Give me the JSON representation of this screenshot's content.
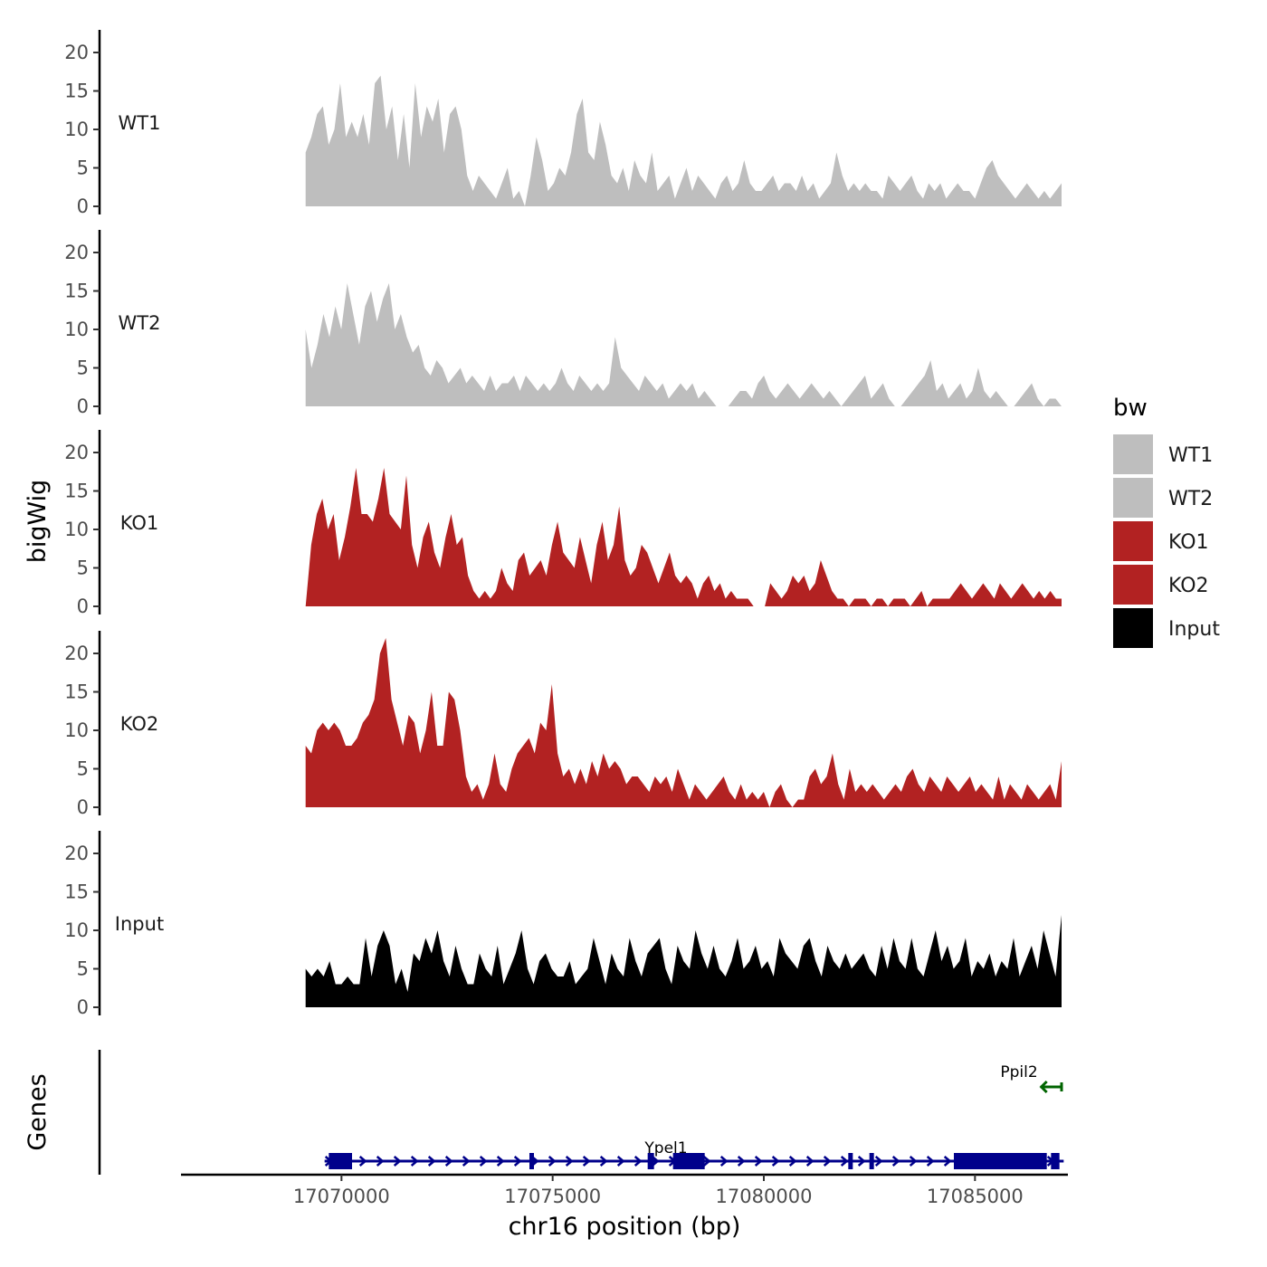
{
  "chart_data": {
    "type": "area",
    "ylabel": "bigWig",
    "xlabel": "chr16 position (bp)",
    "genes_label": "Genes",
    "ylim": [
      0,
      22
    ],
    "yticks": [
      0,
      5,
      10,
      15,
      20
    ],
    "xlim": [
      17066200,
      17087200
    ],
    "xticks": [
      17070000,
      17075000,
      17080000,
      17085000
    ],
    "xtick_labels": [
      "17070000",
      "17075000",
      "17080000",
      "17085000"
    ],
    "data_range": [
      17069150,
      17087050
    ],
    "legend": {
      "title": "bw",
      "entries": [
        {
          "label": "WT1",
          "color": "#bebebe"
        },
        {
          "label": "WT2",
          "color": "#bebebe"
        },
        {
          "label": "KO1",
          "color": "#b22222"
        },
        {
          "label": "KO2",
          "color": "#b22222"
        },
        {
          "label": "Input",
          "color": "#000000"
        }
      ]
    },
    "tracks": [
      {
        "name": "WT1",
        "color": "#bebebe",
        "values": [
          7,
          9,
          12,
          13,
          8,
          10,
          16,
          9,
          11,
          9,
          12,
          8,
          16,
          17,
          10,
          13,
          6,
          12,
          5,
          16,
          9,
          13,
          11,
          14,
          7,
          12,
          13,
          10,
          4,
          2,
          4,
          3,
          2,
          1,
          3,
          5,
          1,
          2,
          0,
          4,
          9,
          6,
          2,
          3,
          5,
          4,
          7,
          12,
          14,
          7,
          6,
          11,
          8,
          4,
          3,
          5,
          2,
          6,
          4,
          3,
          7,
          2,
          3,
          4,
          1,
          3,
          5,
          2,
          4,
          3,
          2,
          1,
          3,
          4,
          2,
          3,
          6,
          3,
          2,
          2,
          3,
          4,
          2,
          3,
          3,
          2,
          4,
          2,
          3,
          1,
          2,
          3,
          7,
          4,
          2,
          3,
          2,
          3,
          2,
          2,
          1,
          4,
          3,
          2,
          3,
          4,
          2,
          1,
          3,
          2,
          3,
          1,
          2,
          3,
          2,
          2,
          1,
          3,
          5,
          6,
          4,
          3,
          2,
          1,
          2,
          3,
          2,
          1,
          2,
          1,
          2,
          3
        ]
      },
      {
        "name": "WT2",
        "color": "#bebebe",
        "values": [
          10,
          5,
          8,
          12,
          9,
          13,
          10,
          16,
          12,
          8,
          13,
          15,
          11,
          14,
          16,
          10,
          12,
          9,
          7,
          8,
          5,
          4,
          6,
          5,
          3,
          4,
          5,
          3,
          4,
          3,
          2,
          4,
          2,
          3,
          3,
          4,
          2,
          4,
          3,
          2,
          3,
          2,
          3,
          5,
          3,
          2,
          4,
          3,
          2,
          3,
          2,
          3,
          9,
          5,
          4,
          3,
          2,
          4,
          3,
          2,
          3,
          1,
          2,
          3,
          2,
          3,
          1,
          2,
          1,
          0,
          0,
          0,
          1,
          2,
          2,
          1,
          3,
          4,
          2,
          1,
          2,
          3,
          2,
          1,
          2,
          3,
          2,
          1,
          2,
          1,
          0,
          1,
          2,
          3,
          4,
          1,
          2,
          3,
          1,
          0,
          0,
          1,
          2,
          3,
          4,
          6,
          2,
          3,
          1,
          2,
          3,
          1,
          2,
          5,
          2,
          1,
          2,
          1,
          0,
          0,
          1,
          2,
          3,
          1,
          0,
          1,
          1,
          0
        ]
      },
      {
        "name": "KO1",
        "color": "#b22222",
        "values": [
          0,
          8,
          12,
          14,
          10,
          12,
          6,
          9,
          13,
          18,
          12,
          12,
          11,
          14,
          18,
          12,
          11,
          10,
          17,
          8,
          5,
          9,
          11,
          7,
          5,
          9,
          12,
          8,
          9,
          4,
          2,
          1,
          2,
          1,
          2,
          5,
          3,
          2,
          6,
          7,
          4,
          5,
          6,
          4,
          8,
          11,
          7,
          6,
          5,
          9,
          6,
          3,
          8,
          11,
          6,
          8,
          13,
          6,
          4,
          5,
          8,
          7,
          5,
          3,
          5,
          7,
          4,
          3,
          4,
          3,
          1,
          3,
          4,
          2,
          3,
          1,
          2,
          1,
          1,
          1,
          0,
          0,
          0,
          3,
          2,
          1,
          2,
          4,
          3,
          4,
          2,
          3,
          6,
          4,
          2,
          1,
          1,
          0,
          1,
          1,
          1,
          0,
          1,
          1,
          0,
          1,
          1,
          1,
          0,
          1,
          2,
          0,
          1,
          1,
          1,
          1,
          2,
          3,
          2,
          1,
          2,
          3,
          2,
          1,
          3,
          2,
          1,
          2,
          3,
          2,
          1,
          2,
          1,
          2,
          1,
          1
        ]
      },
      {
        "name": "KO2",
        "color": "#b22222",
        "values": [
          8,
          7,
          10,
          11,
          10,
          11,
          10,
          8,
          8,
          9,
          11,
          12,
          14,
          20,
          22,
          14,
          11,
          8,
          12,
          11,
          7,
          10,
          15,
          8,
          8,
          15,
          14,
          10,
          4,
          2,
          3,
          1,
          3,
          7,
          3,
          2,
          5,
          7,
          8,
          9,
          7,
          11,
          10,
          16,
          7,
          4,
          5,
          3,
          5,
          3,
          6,
          4,
          7,
          5,
          6,
          5,
          3,
          4,
          4,
          3,
          2,
          4,
          3,
          4,
          2,
          5,
          3,
          1,
          3,
          2,
          1,
          2,
          3,
          4,
          2,
          1,
          3,
          1,
          2,
          1,
          2,
          0,
          2,
          3,
          1,
          0,
          1,
          1,
          4,
          5,
          3,
          4,
          7,
          3,
          1,
          5,
          2,
          3,
          2,
          3,
          2,
          1,
          2,
          3,
          2,
          4,
          5,
          3,
          2,
          4,
          3,
          2,
          4,
          3,
          2,
          3,
          4,
          2,
          3,
          2,
          1,
          4,
          1,
          3,
          2,
          1,
          3,
          2,
          1,
          2,
          3,
          1,
          6
        ]
      },
      {
        "name": "Input",
        "color": "#000000",
        "values": [
          5,
          4,
          5,
          4,
          6,
          3,
          3,
          4,
          3,
          3,
          9,
          4,
          8,
          10,
          8,
          3,
          5,
          2,
          7,
          6,
          9,
          7,
          10,
          6,
          4,
          8,
          5,
          3,
          3,
          7,
          5,
          4,
          8,
          3,
          5,
          7,
          10,
          5,
          3,
          6,
          7,
          5,
          4,
          4,
          6,
          3,
          4,
          5,
          9,
          6,
          3,
          7,
          5,
          4,
          9,
          6,
          4,
          7,
          8,
          9,
          5,
          3,
          8,
          6,
          5,
          10,
          7,
          5,
          8,
          5,
          4,
          6,
          9,
          5,
          6,
          8,
          5,
          6,
          4,
          9,
          7,
          6,
          5,
          8,
          9,
          6,
          4,
          8,
          6,
          5,
          7,
          5,
          6,
          7,
          5,
          4,
          8,
          5,
          9,
          6,
          5,
          9,
          5,
          4,
          7,
          10,
          6,
          8,
          5,
          6,
          9,
          4,
          6,
          5,
          7,
          4,
          6,
          5,
          9,
          4,
          6,
          8,
          5,
          10,
          7,
          4,
          12
        ]
      }
    ],
    "genes": [
      {
        "name": "Ypel1",
        "strand": "+",
        "color": "#00008b",
        "start": 17069600,
        "end": 17087100,
        "exons": [
          [
            17069700,
            17070250
          ],
          [
            17074450,
            17074550
          ],
          [
            17077250,
            17077400
          ],
          [
            17077850,
            17078600
          ],
          [
            17082000,
            17082100
          ],
          [
            17082500,
            17082600
          ],
          [
            17084500,
            17086700
          ],
          [
            17086800,
            17087000
          ]
        ]
      },
      {
        "name": "Ppil2",
        "strand": "-",
        "color": "#006400",
        "start": 17086550,
        "end": 17087050,
        "exons": []
      }
    ]
  }
}
